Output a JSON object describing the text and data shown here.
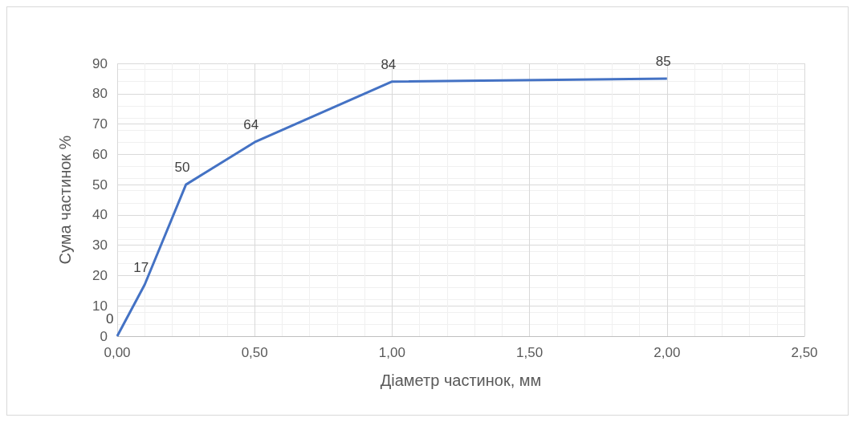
{
  "chart_data": {
    "type": "line",
    "xlabel": "Діаметр частинок, мм",
    "ylabel": "Сума частинок %",
    "x": [
      0,
      0.1,
      0.25,
      0.5,
      1,
      2
    ],
    "series": [
      {
        "color": "#4472c4",
        "values": [
          0,
          17,
          50,
          64,
          84,
          85
        ]
      }
    ],
    "data_labels": true,
    "xlim": [
      0,
      2.5
    ],
    "xticks": [
      {
        "value": 0,
        "label": "0,00"
      },
      {
        "value": 0.5,
        "label": "0,50"
      },
      {
        "value": 1,
        "label": "1,00"
      },
      {
        "value": 1.5,
        "label": "1,50"
      },
      {
        "value": 2,
        "label": "2,00"
      },
      {
        "value": 2.5,
        "label": "2,50"
      }
    ],
    "ylim": [
      0,
      90
    ],
    "yticks": [
      0,
      10,
      20,
      30,
      40,
      50,
      60,
      70,
      80,
      90
    ],
    "grid": true,
    "marker": "none",
    "line_style": "solid"
  }
}
